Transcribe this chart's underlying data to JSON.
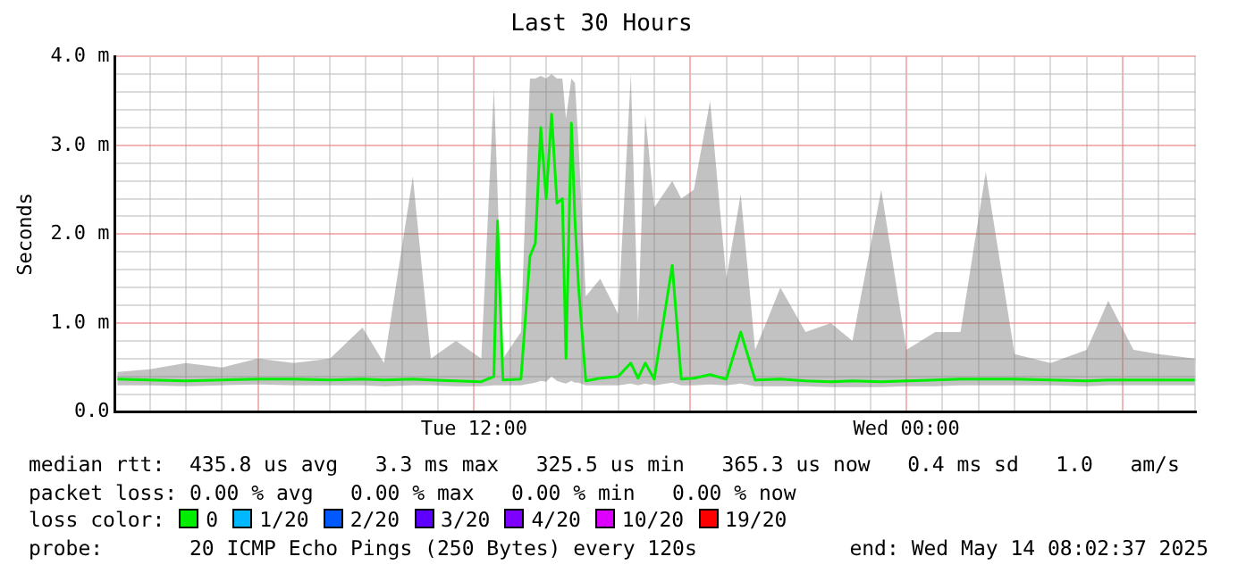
{
  "chart_data": {
    "type": "line",
    "title": "Last 30 Hours",
    "ylabel": "Seconds",
    "legend_title": "loss color:",
    "legend": "bottom",
    "grid": true,
    "marker": "none",
    "line_style": "solid",
    "xlim": [
      "2025-05-13T02:02",
      "2025-05-14T08:02"
    ],
    "xticks": [
      {
        "value": "2025-05-13T03:00",
        "label": null
      },
      {
        "value": "2025-05-13T04:00",
        "label": null
      },
      {
        "value": "2025-05-13T05:00",
        "label": null
      },
      {
        "value": "2025-05-13T06:00",
        "label": null
      },
      {
        "value": "2025-05-13T07:00",
        "label": null
      },
      {
        "value": "2025-05-13T08:00",
        "label": null
      },
      {
        "value": "2025-05-13T09:00",
        "label": null
      },
      {
        "value": "2025-05-13T10:00",
        "label": null
      },
      {
        "value": "2025-05-13T11:00",
        "label": null
      },
      {
        "value": "2025-05-13T12:00",
        "label": "Tue 12:00"
      },
      {
        "value": "2025-05-13T13:00",
        "label": null
      },
      {
        "value": "2025-05-13T14:00",
        "label": null
      },
      {
        "value": "2025-05-13T15:00",
        "label": null
      },
      {
        "value": "2025-05-13T16:00",
        "label": null
      },
      {
        "value": "2025-05-13T17:00",
        "label": null
      },
      {
        "value": "2025-05-13T18:00",
        "label": null
      },
      {
        "value": "2025-05-13T19:00",
        "label": null
      },
      {
        "value": "2025-05-13T20:00",
        "label": null
      },
      {
        "value": "2025-05-13T21:00",
        "label": null
      },
      {
        "value": "2025-05-13T22:00",
        "label": null
      },
      {
        "value": "2025-05-13T23:00",
        "label": null
      },
      {
        "value": "2025-05-14T00:00",
        "label": "Wed 00:00"
      },
      {
        "value": "2025-05-14T01:00",
        "label": null
      },
      {
        "value": "2025-05-14T02:00",
        "label": null
      },
      {
        "value": "2025-05-14T03:00",
        "label": null
      },
      {
        "value": "2025-05-14T04:00",
        "label": null
      },
      {
        "value": "2025-05-14T05:00",
        "label": null
      },
      {
        "value": "2025-05-14T06:00",
        "label": null
      },
      {
        "value": "2025-05-14T07:00",
        "label": null
      },
      {
        "value": "2025-05-14T08:00",
        "label": null
      }
    ],
    "ylim": [
      0,
      4
    ],
    "yticks": [
      {
        "value": 0,
        "label": "0.0"
      },
      {
        "value": 0.2,
        "label": null
      },
      {
        "value": 0.4,
        "label": null
      },
      {
        "value": 0.6,
        "label": null
      },
      {
        "value": 0.8,
        "label": null
      },
      {
        "value": 1,
        "label": "1.0 m"
      },
      {
        "value": 1.2,
        "label": null
      },
      {
        "value": 1.4,
        "label": null
      },
      {
        "value": 1.6,
        "label": null
      },
      {
        "value": 1.8,
        "label": null
      },
      {
        "value": 2,
        "label": "2.0 m"
      },
      {
        "value": 2.2,
        "label": null
      },
      {
        "value": 2.4,
        "label": null
      },
      {
        "value": 2.6,
        "label": null
      },
      {
        "value": 2.8,
        "label": null
      },
      {
        "value": 3,
        "label": "3.0 m"
      },
      {
        "value": 3.2,
        "label": null
      },
      {
        "value": 3.4,
        "label": null
      },
      {
        "value": 3.6,
        "label": null
      },
      {
        "value": 3.8,
        "label": null
      },
      {
        "value": 4,
        "label": "4.0 m"
      }
    ],
    "x": [
      "2025-05-13T02:06",
      "2025-05-13T03:00",
      "2025-05-13T04:00",
      "2025-05-13T05:00",
      "2025-05-13T06:00",
      "2025-05-13T07:00",
      "2025-05-13T08:00",
      "2025-05-13T08:54",
      "2025-05-13T09:30",
      "2025-05-13T10:18",
      "2025-05-13T10:48",
      "2025-05-13T11:30",
      "2025-05-13T12:12",
      "2025-05-13T12:33",
      "2025-05-13T12:39",
      "2025-05-13T12:48",
      "2025-05-13T13:18",
      "2025-05-13T13:33",
      "2025-05-13T13:42",
      "2025-05-13T13:51",
      "2025-05-13T14:00",
      "2025-05-13T14:09",
      "2025-05-13T14:18",
      "2025-05-13T14:27",
      "2025-05-13T14:33",
      "2025-05-13T14:42",
      "2025-05-13T14:48",
      "2025-05-13T14:54",
      "2025-05-13T15:06",
      "2025-05-13T15:30",
      "2025-05-13T16:00",
      "2025-05-13T16:21",
      "2025-05-13T16:33",
      "2025-05-13T16:45",
      "2025-05-13T17:00",
      "2025-05-13T17:30",
      "2025-05-13T17:45",
      "2025-05-13T18:06",
      "2025-05-13T18:33",
      "2025-05-13T19:00",
      "2025-05-13T19:24",
      "2025-05-13T19:48",
      "2025-05-13T20:30",
      "2025-05-13T21:12",
      "2025-05-13T21:54",
      "2025-05-13T22:30",
      "2025-05-13T23:18",
      "2025-05-14T00:00",
      "2025-05-14T00:48",
      "2025-05-14T01:30",
      "2025-05-14T02:12",
      "2025-05-14T03:00",
      "2025-05-14T04:00",
      "2025-05-14T05:00",
      "2025-05-14T05:36",
      "2025-05-14T06:18",
      "2025-05-14T07:00",
      "2025-05-14T08:00"
    ],
    "series": [
      {
        "name": "0",
        "color": "#00ee00",
        "values": [
          0.37,
          0.36,
          0.35,
          0.36,
          0.37,
          0.37,
          0.36,
          0.37,
          0.36,
          0.37,
          0.36,
          0.35,
          0.34,
          0.4,
          2.15,
          0.36,
          0.37,
          1.75,
          1.9,
          3.2,
          2.4,
          3.35,
          2.35,
          2.4,
          0.6,
          3.25,
          2.15,
          1.4,
          0.35,
          0.38,
          0.4,
          0.55,
          0.38,
          0.55,
          0.37,
          1.65,
          0.37,
          0.38,
          0.42,
          0.37,
          0.9,
          0.36,
          0.37,
          0.35,
          0.34,
          0.35,
          0.34,
          0.35,
          0.36,
          0.37,
          0.37,
          0.37,
          0.36,
          0.35,
          0.36,
          0.36,
          0.36,
          0.36
        ],
        "lower": [
          0.3,
          0.3,
          0.29,
          0.3,
          0.31,
          0.3,
          0.3,
          0.3,
          0.29,
          0.3,
          0.3,
          0.29,
          0.29,
          0.3,
          0.3,
          0.3,
          0.3,
          0.32,
          0.33,
          0.35,
          0.34,
          0.4,
          0.35,
          0.33,
          0.32,
          0.35,
          0.33,
          0.33,
          0.3,
          0.3,
          0.3,
          0.32,
          0.3,
          0.32,
          0.3,
          0.33,
          0.3,
          0.3,
          0.31,
          0.3,
          0.32,
          0.29,
          0.29,
          0.29,
          0.28,
          0.28,
          0.28,
          0.29,
          0.29,
          0.3,
          0.3,
          0.3,
          0.3,
          0.29,
          0.3,
          0.3,
          0.3,
          0.3
        ],
        "upper": [
          0.45,
          0.48,
          0.55,
          0.5,
          0.6,
          0.55,
          0.6,
          0.95,
          0.55,
          2.65,
          0.6,
          0.8,
          0.6,
          3.65,
          2.5,
          0.6,
          0.9,
          3.75,
          3.75,
          3.78,
          3.75,
          3.8,
          3.75,
          3.75,
          3.3,
          3.75,
          3.7,
          3.0,
          1.3,
          1.5,
          1.1,
          3.8,
          1.0,
          3.35,
          2.3,
          2.6,
          2.4,
          2.5,
          3.5,
          1.5,
          2.45,
          0.7,
          1.4,
          0.9,
          1.0,
          0.8,
          2.5,
          0.7,
          0.9,
          0.9,
          2.7,
          0.65,
          0.55,
          0.7,
          1.25,
          0.7,
          0.65,
          0.6
        ]
      },
      {
        "name": "1/20",
        "color": "#00b8ff",
        "values": [
          null,
          null,
          null,
          null,
          null,
          null,
          null,
          null,
          null,
          null,
          null,
          null,
          null,
          null,
          null,
          null,
          null,
          null,
          null,
          null,
          null,
          null,
          null,
          null,
          null,
          null,
          null,
          null,
          null,
          null,
          null,
          null,
          null,
          null,
          null,
          null,
          null,
          null,
          null,
          null,
          null,
          null,
          null,
          null,
          null,
          null,
          null,
          null,
          null,
          null,
          null,
          null,
          null,
          null,
          null,
          null,
          null,
          null
        ]
      },
      {
        "name": "2/20",
        "color": "#0059ff",
        "values": [
          null,
          null,
          null,
          null,
          null,
          null,
          null,
          null,
          null,
          null,
          null,
          null,
          null,
          null,
          null,
          null,
          null,
          null,
          null,
          null,
          null,
          null,
          null,
          null,
          null,
          null,
          null,
          null,
          null,
          null,
          null,
          null,
          null,
          null,
          null,
          null,
          null,
          null,
          null,
          null,
          null,
          null,
          null,
          null,
          null,
          null,
          null,
          null,
          null,
          null,
          null,
          null,
          null,
          null,
          null,
          null,
          null,
          null
        ]
      },
      {
        "name": "3/20",
        "color": "#5e00ff",
        "values": [
          null,
          null,
          null,
          null,
          null,
          null,
          null,
          null,
          null,
          null,
          null,
          null,
          null,
          null,
          null,
          null,
          null,
          null,
          null,
          null,
          null,
          null,
          null,
          null,
          null,
          null,
          null,
          null,
          null,
          null,
          null,
          null,
          null,
          null,
          null,
          null,
          null,
          null,
          null,
          null,
          null,
          null,
          null,
          null,
          null,
          null,
          null,
          null,
          null,
          null,
          null,
          null,
          null,
          null,
          null,
          null,
          null,
          null
        ]
      },
      {
        "name": "4/20",
        "color": "#7e00ff",
        "values": [
          null,
          null,
          null,
          null,
          null,
          null,
          null,
          null,
          null,
          null,
          null,
          null,
          null,
          null,
          null,
          null,
          null,
          null,
          null,
          null,
          null,
          null,
          null,
          null,
          null,
          null,
          null,
          null,
          null,
          null,
          null,
          null,
          null,
          null,
          null,
          null,
          null,
          null,
          null,
          null,
          null,
          null,
          null,
          null,
          null,
          null,
          null,
          null,
          null,
          null,
          null,
          null,
          null,
          null,
          null,
          null,
          null,
          null
        ]
      },
      {
        "name": "10/20",
        "color": "#dd00ff",
        "values": [
          null,
          null,
          null,
          null,
          null,
          null,
          null,
          null,
          null,
          null,
          null,
          null,
          null,
          null,
          null,
          null,
          null,
          null,
          null,
          null,
          null,
          null,
          null,
          null,
          null,
          null,
          null,
          null,
          null,
          null,
          null,
          null,
          null,
          null,
          null,
          null,
          null,
          null,
          null,
          null,
          null,
          null,
          null,
          null,
          null,
          null,
          null,
          null,
          null,
          null,
          null,
          null,
          null,
          null,
          null,
          null,
          null,
          null
        ]
      },
      {
        "name": "19/20",
        "color": "#ff0000",
        "values": [
          null,
          null,
          null,
          null,
          null,
          null,
          null,
          null,
          null,
          null,
          null,
          null,
          null,
          null,
          null,
          null,
          null,
          null,
          null,
          null,
          null,
          null,
          null,
          null,
          null,
          null,
          null,
          null,
          null,
          null,
          null,
          null,
          null,
          null,
          null,
          null,
          null,
          null,
          null,
          null,
          null,
          null,
          null,
          null,
          null,
          null,
          null,
          null,
          null,
          null,
          null,
          null,
          null,
          null,
          null,
          null,
          null,
          null
        ]
      }
    ],
    "annotations": [
      "median rtt:  435.8 us avg   3.3 ms max   325.5 us min   365.3 us now   0.4 ms sd   1.0   am/s",
      "packet loss: 0.00 % avg   0.00 % max   0.00 % min   0.00 % now",
      "probe:       20 ICMP Echo Pings (250 Bytes) every 120s",
      "end: Wed May 14 08:02:37 2025"
    ]
  }
}
